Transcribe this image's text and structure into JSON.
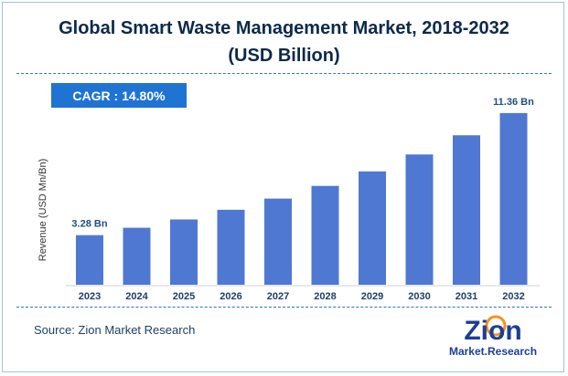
{
  "title_line1": "Global Smart Waste Management Market, 2018-2032",
  "title_line2": "(USD Billion)",
  "cagr": {
    "label": "CAGR :",
    "value": "14.80%"
  },
  "source": "Source: Zion Market Research",
  "logo": {
    "word": "Zion",
    "sub": "Market.Research"
  },
  "colors": {
    "bar": "#4f78d2",
    "title": "#0b2a4a",
    "cagr_bg": "#1f73d3",
    "dash": "#2e75b6",
    "logo_blue": "#1c3f95",
    "logo_orange": "#f6921e"
  },
  "chart_data": {
    "type": "bar",
    "title": "Global Smart Waste Management Market, 2018-2032",
    "subtitle": "(USD Billion)",
    "xlabel": "",
    "ylabel": "Revenue (USD Mn/Bn)",
    "categories": [
      "2023",
      "2024",
      "2025",
      "2026",
      "2027",
      "2028",
      "2029",
      "2030",
      "2031",
      "2032"
    ],
    "values": [
      3.28,
      3.77,
      4.32,
      4.96,
      5.7,
      6.54,
      7.5,
      8.62,
      9.89,
      11.36
    ],
    "data_labels": [
      {
        "index": 0,
        "text": "3.28 Bn"
      },
      {
        "index": 9,
        "text": "11.36 Bn"
      }
    ],
    "ylim": [
      0,
      12.5
    ],
    "grid": false,
    "legend": "none"
  }
}
